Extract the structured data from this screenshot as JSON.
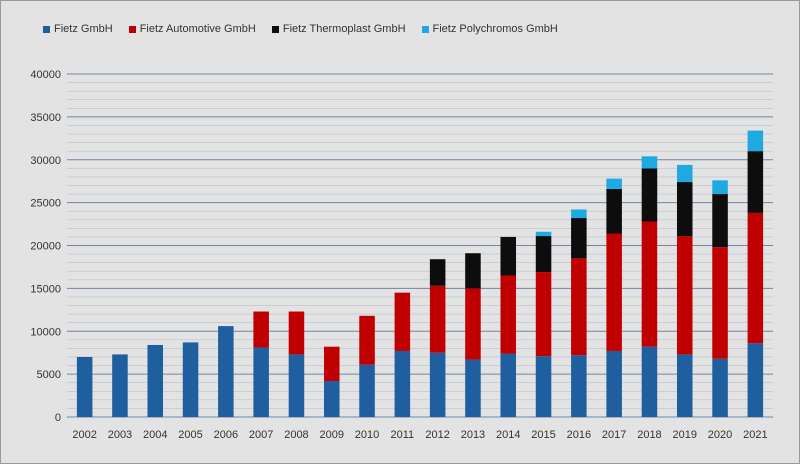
{
  "chart_data": {
    "type": "bar",
    "stacked": true,
    "categories": [
      "2002",
      "2003",
      "2004",
      "2005",
      "2006",
      "2007",
      "2008",
      "2009",
      "2010",
      "2011",
      "2012",
      "2013",
      "2014",
      "2015",
      "2016",
      "2017",
      "2018",
      "2019",
      "2020",
      "2021"
    ],
    "series": [
      {
        "name": "Fietz GmbH",
        "color": "#1f5fa0",
        "values": [
          7000,
          7300,
          8400,
          8700,
          10600,
          8100,
          7300,
          4200,
          6100,
          7700,
          7500,
          6700,
          7400,
          7100,
          7200,
          7700,
          8200,
          7300,
          6800,
          8600
        ]
      },
      {
        "name": "Fietz Automotive GmbH",
        "color": "#c00000",
        "values": [
          0,
          0,
          0,
          0,
          0,
          4200,
          5000,
          4000,
          5700,
          6800,
          7800,
          8300,
          9100,
          9800,
          11300,
          13700,
          14600,
          13800,
          13000,
          15200
        ]
      },
      {
        "name": "Fietz Thermoplast GmbH",
        "color": "#0d0d0d",
        "values": [
          0,
          0,
          0,
          0,
          0,
          0,
          0,
          0,
          0,
          0,
          3100,
          4100,
          4500,
          4200,
          4700,
          5200,
          6200,
          6300,
          6200,
          7200
        ]
      },
      {
        "name": "Fietz Polychromos GmbH",
        "color": "#1ea9e0",
        "values": [
          0,
          0,
          0,
          0,
          0,
          0,
          0,
          0,
          0,
          0,
          0,
          0,
          0,
          500,
          1000,
          1200,
          1400,
          2000,
          1600,
          2400
        ]
      }
    ],
    "y_ticks": [
      "0",
      "5000",
      "10000",
      "15000",
      "20000",
      "25000",
      "30000",
      "35000",
      "40000"
    ],
    "ylim": [
      0,
      40000
    ],
    "grid": true,
    "legend_position": "top-left",
    "title": "",
    "xlabel": "",
    "ylabel": ""
  },
  "colors": {
    "background": "#e3e3e3",
    "gridline": "#6f84a6",
    "minor_gridline": "#b9c2d2"
  }
}
